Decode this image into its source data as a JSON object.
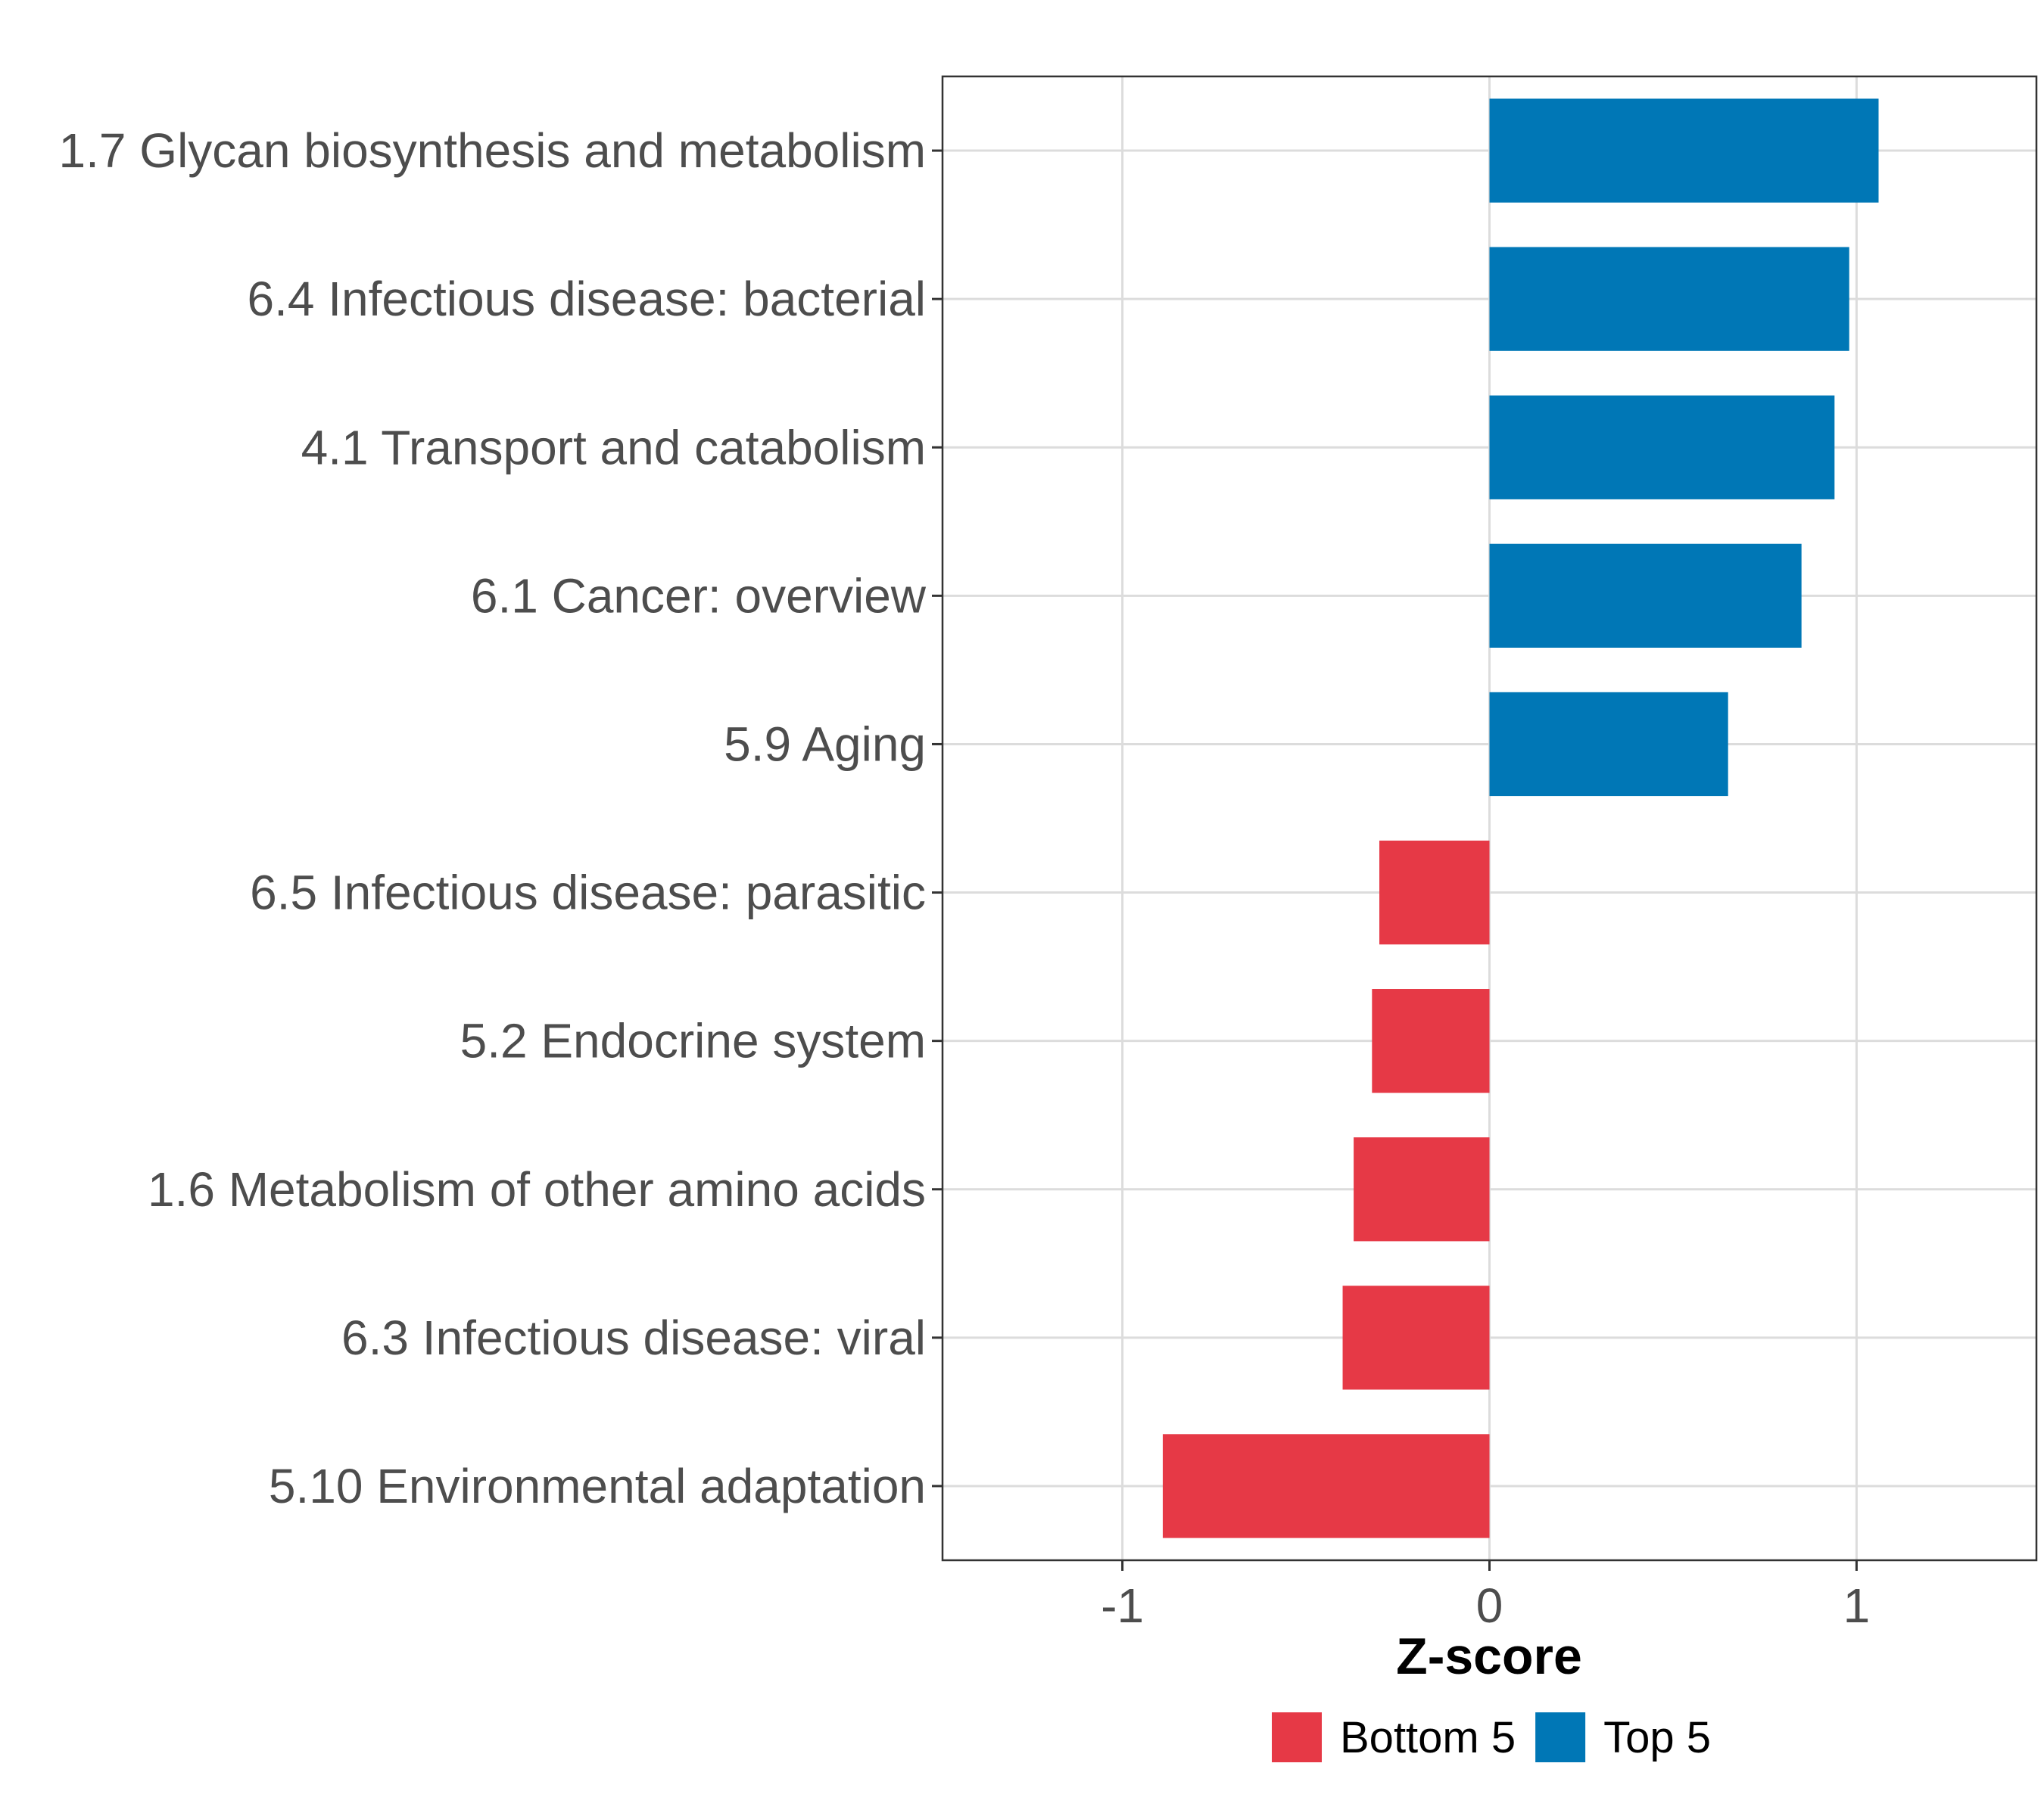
{
  "chart_data": {
    "type": "bar",
    "orientation": "horizontal",
    "categories": [
      "1.7 Glycan biosynthesis and metabolism",
      "6.4 Infectious disease: bacterial",
      "4.1 Transport and catabolism",
      "6.1 Cancer: overview",
      "5.9 Aging",
      "6.5 Infectious disease: parasitic",
      "5.2 Endocrine system",
      "1.6 Metabolism of other amino acids",
      "6.3 Infectious disease: viral",
      "5.10 Environmental adaptation"
    ],
    "values": [
      1.06,
      0.98,
      0.94,
      0.85,
      0.65,
      -0.3,
      -0.32,
      -0.37,
      -0.4,
      -0.89
    ],
    "groups": [
      "Top 5",
      "Top 5",
      "Top 5",
      "Top 5",
      "Top 5",
      "Bottom 5",
      "Bottom 5",
      "Bottom 5",
      "Bottom 5",
      "Bottom 5"
    ],
    "title": "",
    "xlabel": "Z-score",
    "ylabel": "",
    "xlim": [
      -1.49,
      1.49
    ],
    "xticks": [
      -1,
      0,
      1
    ],
    "xtick_labels": [
      "-1",
      "0",
      "1"
    ],
    "grid": true,
    "legend": {
      "position": "bottom",
      "entries": [
        {
          "name": "Bottom 5",
          "color": "#e63946"
        },
        {
          "name": "Top 5",
          "color": "#0077b6"
        }
      ]
    }
  }
}
